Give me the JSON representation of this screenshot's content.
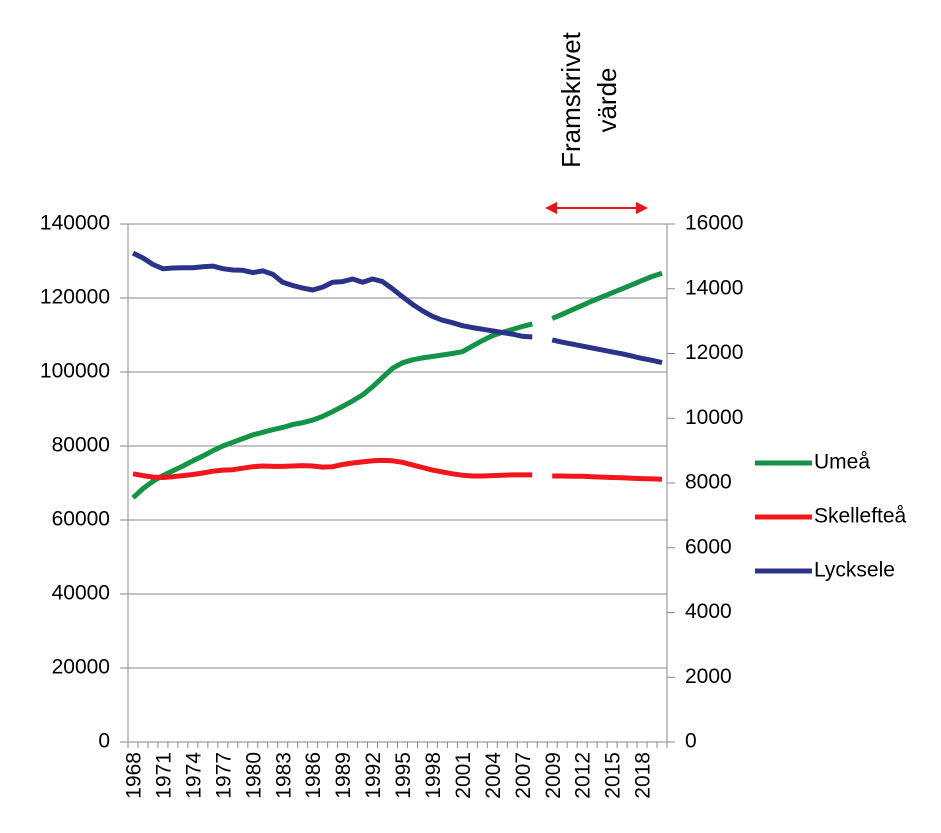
{
  "chart_data": {
    "type": "line",
    "annotation": {
      "lines": [
        "Framskrivet",
        "värde"
      ],
      "color": "#e8141b"
    },
    "categories": [
      "1968",
      null,
      null,
      "1971",
      null,
      null,
      "1974",
      null,
      null,
      "1977",
      null,
      null,
      "1980",
      null,
      null,
      "1983",
      null,
      null,
      "1986",
      null,
      null,
      "1989",
      null,
      null,
      "1992",
      null,
      null,
      "1995",
      null,
      null,
      "1998",
      null,
      null,
      "2001",
      null,
      null,
      "2004",
      null,
      null,
      "2007",
      null,
      null,
      "2009",
      null,
      null,
      "2012",
      null,
      null,
      "2015",
      null,
      null,
      "2018",
      null,
      null
    ],
    "series": [
      {
        "name": "Umeå",
        "color": "#139345",
        "values": [
          66000,
          68500,
          70500,
          72000,
          73300,
          74600,
          76000,
          77300,
          78700,
          80000,
          81000,
          82000,
          83000,
          83700,
          84400,
          85000,
          85800,
          86300,
          87000,
          88000,
          89300,
          90700,
          92200,
          93800,
          96000,
          98500,
          101000,
          102500,
          103300,
          103800,
          104200,
          104600,
          105000,
          105500,
          107000,
          108500,
          109800,
          110700,
          111500,
          112300,
          113000,
          null,
          114500,
          115600,
          116800,
          118000,
          119200,
          120300,
          121400,
          122500,
          123600,
          124700,
          125800,
          126700
        ]
      },
      {
        "name": "Skellefteå",
        "color": "#f0161c",
        "values": [
          72500,
          72000,
          71600,
          71500,
          71700,
          72000,
          72300,
          72700,
          73200,
          73500,
          73600,
          74000,
          74400,
          74600,
          74500,
          74500,
          74600,
          74700,
          74600,
          74300,
          74400,
          75000,
          75400,
          75700,
          76000,
          76100,
          76000,
          75600,
          74900,
          74200,
          73500,
          73000,
          72500,
          72100,
          71900,
          71900,
          72000,
          72100,
          72200,
          72200,
          72200,
          null,
          71900,
          71900,
          71800,
          71800,
          71700,
          71600,
          71500,
          71400,
          71300,
          71200,
          71100,
          71000
        ]
      },
      {
        "name": "Lycksele",
        "color": "#2b3389",
        "axis": "y2",
        "values": [
          15100,
          14950,
          14750,
          14620,
          14640,
          14650,
          14650,
          14680,
          14700,
          14620,
          14580,
          14570,
          14500,
          14550,
          14450,
          14200,
          14100,
          14020,
          13960,
          14050,
          14200,
          14220,
          14300,
          14200,
          14300,
          14220,
          14000,
          13750,
          13520,
          13320,
          13150,
          13030,
          12950,
          12860,
          12800,
          12750,
          12700,
          12650,
          12600,
          12530,
          12510,
          null,
          12420,
          12350,
          12290,
          12230,
          12170,
          12110,
          12050,
          11990,
          11920,
          11850,
          11790,
          11720
        ]
      }
    ],
    "ylim": [
      0,
      140000
    ],
    "yticks": [
      0,
      20000,
      40000,
      60000,
      80000,
      100000,
      120000,
      140000
    ],
    "y2lim": [
      0,
      16000
    ],
    "y2ticks": [
      0,
      2000,
      4000,
      6000,
      8000,
      10000,
      12000,
      14000,
      16000
    ],
    "grid": true,
    "legend": "right"
  }
}
